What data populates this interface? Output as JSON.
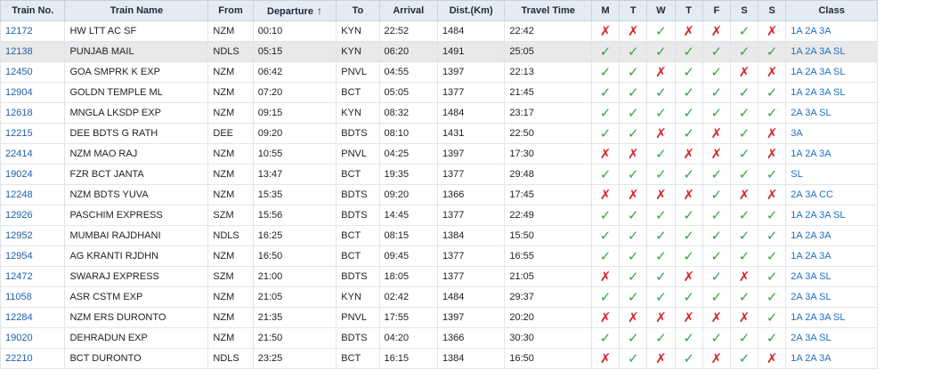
{
  "table": {
    "headers": {
      "train_no": "Train No.",
      "train_name": "Train Name",
      "from": "From",
      "departure": "Departure",
      "sort_arrow": "↑",
      "to": "To",
      "arrival": "Arrival",
      "dist": "Dist.(Km)",
      "travel_time": "Travel Time",
      "days": [
        "M",
        "T",
        "W",
        "T",
        "F",
        "S",
        "S"
      ],
      "class": "Class"
    },
    "marks": {
      "yes": "✓",
      "no": "✗"
    },
    "colors": {
      "yes": "#33a541",
      "no": "#d7262b",
      "link": "#1f5fa8",
      "header_bg": "#e4ebf4",
      "highlight_row": "#e9e9e9"
    },
    "rows": [
      {
        "no": "12172",
        "name": "HW LTT AC SF",
        "from": "NZM",
        "dep": "00:10",
        "to": "KYN",
        "arr": "22:52",
        "dist": "1484",
        "time": "22:42",
        "days": [
          0,
          0,
          1,
          0,
          0,
          1,
          0
        ],
        "cls": "1A 2A 3A"
      },
      {
        "no": "12138",
        "name": "PUNJAB MAIL",
        "from": "NDLS",
        "dep": "05:15",
        "to": "KYN",
        "arr": "06:20",
        "dist": "1491",
        "time": "25:05",
        "days": [
          1,
          1,
          1,
          1,
          1,
          1,
          1
        ],
        "cls": "1A 2A 3A SL",
        "highlight": true
      },
      {
        "no": "12450",
        "name": "GOA SMPRK K EXP",
        "from": "NZM",
        "dep": "06:42",
        "to": "PNVL",
        "arr": "04:55",
        "dist": "1397",
        "time": "22:13",
        "days": [
          1,
          1,
          0,
          1,
          1,
          0,
          0
        ],
        "cls": "1A 2A 3A SL"
      },
      {
        "no": "12904",
        "name": "GOLDN TEMPLE ML",
        "from": "NZM",
        "dep": "07:20",
        "to": "BCT",
        "arr": "05:05",
        "dist": "1377",
        "time": "21:45",
        "days": [
          1,
          1,
          1,
          1,
          1,
          1,
          1
        ],
        "cls": "1A 2A 3A SL"
      },
      {
        "no": "12618",
        "name": "MNGLA LKSDP EXP",
        "from": "NZM",
        "dep": "09:15",
        "to": "KYN",
        "arr": "08:32",
        "dist": "1484",
        "time": "23:17",
        "days": [
          1,
          1,
          1,
          1,
          1,
          1,
          1
        ],
        "cls": "2A 3A SL"
      },
      {
        "no": "12215",
        "name": "DEE BDTS G RATH",
        "from": "DEE",
        "dep": "09:20",
        "to": "BDTS",
        "arr": "08:10",
        "dist": "1431",
        "time": "22:50",
        "days": [
          1,
          1,
          0,
          1,
          0,
          1,
          0
        ],
        "cls": "3A"
      },
      {
        "no": "22414",
        "name": "NZM MAO RAJ",
        "from": "NZM",
        "dep": "10:55",
        "to": "PNVL",
        "arr": "04:25",
        "dist": "1397",
        "time": "17:30",
        "days": [
          0,
          0,
          1,
          0,
          0,
          1,
          0
        ],
        "cls": "1A 2A 3A"
      },
      {
        "no": "19024",
        "name": "FZR BCT JANTA",
        "from": "NZM",
        "dep": "13:47",
        "to": "BCT",
        "arr": "19:35",
        "dist": "1377",
        "time": "29:48",
        "days": [
          1,
          1,
          1,
          1,
          1,
          1,
          1
        ],
        "cls": "SL"
      },
      {
        "no": "12248",
        "name": "NZM BDTS YUVA",
        "from": "NZM",
        "dep": "15:35",
        "to": "BDTS",
        "arr": "09:20",
        "dist": "1366",
        "time": "17:45",
        "days": [
          0,
          0,
          0,
          0,
          1,
          0,
          0
        ],
        "cls": "2A 3A CC"
      },
      {
        "no": "12926",
        "name": "PASCHIM EXPRESS",
        "from": "SZM",
        "dep": "15:56",
        "to": "BDTS",
        "arr": "14:45",
        "dist": "1377",
        "time": "22:49",
        "days": [
          1,
          1,
          1,
          1,
          1,
          1,
          1
        ],
        "cls": "1A 2A 3A SL"
      },
      {
        "no": "12952",
        "name": "MUMBAI RAJDHANI",
        "from": "NDLS",
        "dep": "16:25",
        "to": "BCT",
        "arr": "08:15",
        "dist": "1384",
        "time": "15:50",
        "days": [
          1,
          1,
          1,
          1,
          1,
          1,
          1
        ],
        "cls": "1A 2A 3A"
      },
      {
        "no": "12954",
        "name": "AG KRANTI RJDHN",
        "from": "NZM",
        "dep": "16:50",
        "to": "BCT",
        "arr": "09:45",
        "dist": "1377",
        "time": "16:55",
        "days": [
          1,
          1,
          1,
          1,
          1,
          1,
          1
        ],
        "cls": "1A 2A 3A"
      },
      {
        "no": "12472",
        "name": "SWARAJ EXPRESS",
        "from": "SZM",
        "dep": "21:00",
        "to": "BDTS",
        "arr": "18:05",
        "dist": "1377",
        "time": "21:05",
        "days": [
          0,
          1,
          1,
          0,
          1,
          0,
          1
        ],
        "cls": "2A 3A SL"
      },
      {
        "no": "11058",
        "name": "ASR CSTM EXP",
        "from": "NZM",
        "dep": "21:05",
        "to": "KYN",
        "arr": "02:42",
        "dist": "1484",
        "time": "29:37",
        "days": [
          1,
          1,
          1,
          1,
          1,
          1,
          1
        ],
        "cls": "2A 3A SL"
      },
      {
        "no": "12284",
        "name": "NZM ERS DURONTO",
        "from": "NZM",
        "dep": "21:35",
        "to": "PNVL",
        "arr": "17:55",
        "dist": "1397",
        "time": "20:20",
        "days": [
          0,
          0,
          0,
          0,
          0,
          0,
          1
        ],
        "cls": "1A 2A 3A SL"
      },
      {
        "no": "19020",
        "name": "DEHRADUN EXP",
        "from": "NZM",
        "dep": "21:50",
        "to": "BDTS",
        "arr": "04:20",
        "dist": "1366",
        "time": "30:30",
        "days": [
          1,
          1,
          1,
          1,
          1,
          1,
          1
        ],
        "cls": "2A 3A SL"
      },
      {
        "no": "22210",
        "name": "BCT DURONTO",
        "from": "NDLS",
        "dep": "23:25",
        "to": "BCT",
        "arr": "16:15",
        "dist": "1384",
        "time": "16:50",
        "days": [
          0,
          1,
          0,
          1,
          0,
          1,
          0
        ],
        "cls": "1A 2A 3A"
      }
    ]
  }
}
